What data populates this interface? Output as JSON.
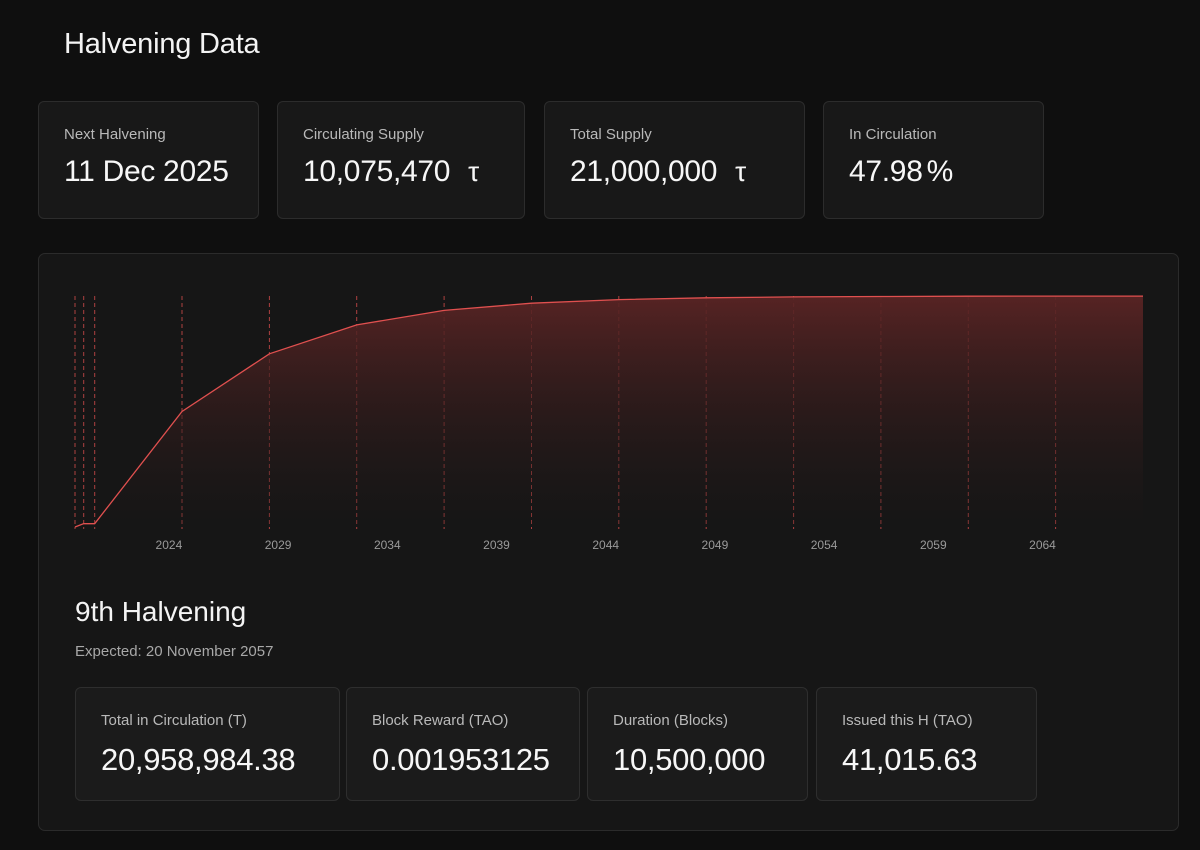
{
  "page": {
    "title": "Halvening Data"
  },
  "stats": [
    {
      "label": "Next Halvening",
      "value": "11 Dec 2025",
      "unit": ""
    },
    {
      "label": "Circulating Supply",
      "value": "10,075,470",
      "unit": "τ"
    },
    {
      "label": "Total Supply",
      "value": "21,000,000",
      "unit": "τ"
    },
    {
      "label": "In Circulation",
      "value": "47.98",
      "unit": "%"
    }
  ],
  "halving": {
    "title": "9th Halvening",
    "expected": "Expected: 20 November 2057",
    "details": [
      {
        "label": "Total in Circulation (T)",
        "value": "20,958,984.38"
      },
      {
        "label": "Block Reward (TAO)",
        "value": "0.001953125"
      },
      {
        "label": "Duration (Blocks)",
        "value": "10,500,000"
      },
      {
        "label": "Issued this H (TAO)",
        "value": "41,015.63"
      }
    ]
  },
  "colors": {
    "accent": "#e0504f",
    "background": "#0f0f0f",
    "card": "#181818"
  },
  "chart_data": {
    "type": "area",
    "title": "",
    "xlabel": "",
    "ylabel": "",
    "x_ticks": [
      "2024",
      "2029",
      "2034",
      "2039",
      "2044",
      "2049",
      "2054",
      "2059",
      "2064"
    ],
    "x_tick_values": [
      2024,
      2029,
      2034,
      2039,
      2044,
      2049,
      2054,
      2059,
      2064
    ],
    "xlim": [
      2019.7,
      2068.6
    ],
    "ylim": [
      0,
      21000000
    ],
    "grid": false,
    "legend": "none",
    "series": [
      {
        "x": [
          2019.7,
          2020.1,
          2020.6,
          2024.6,
          2028.6,
          2032.6,
          2036.6,
          2040.6,
          2044.6,
          2048.6,
          2052.6,
          2056.6,
          2060.6,
          2064.6,
          2068.6
        ],
        "values": [
          0,
          300000,
          300000,
          10500000,
          15750000,
          18375000,
          19687500,
          20343750,
          20671875,
          20835938,
          20917969,
          20958984,
          20979492,
          20989746,
          20994873
        ]
      }
    ],
    "halving_markers": [
      2019.7,
      2020.1,
      2020.6,
      2024.6,
      2028.6,
      2032.6,
      2036.6,
      2040.6,
      2044.6,
      2048.6,
      2052.6,
      2056.6,
      2060.6,
      2064.6
    ]
  }
}
